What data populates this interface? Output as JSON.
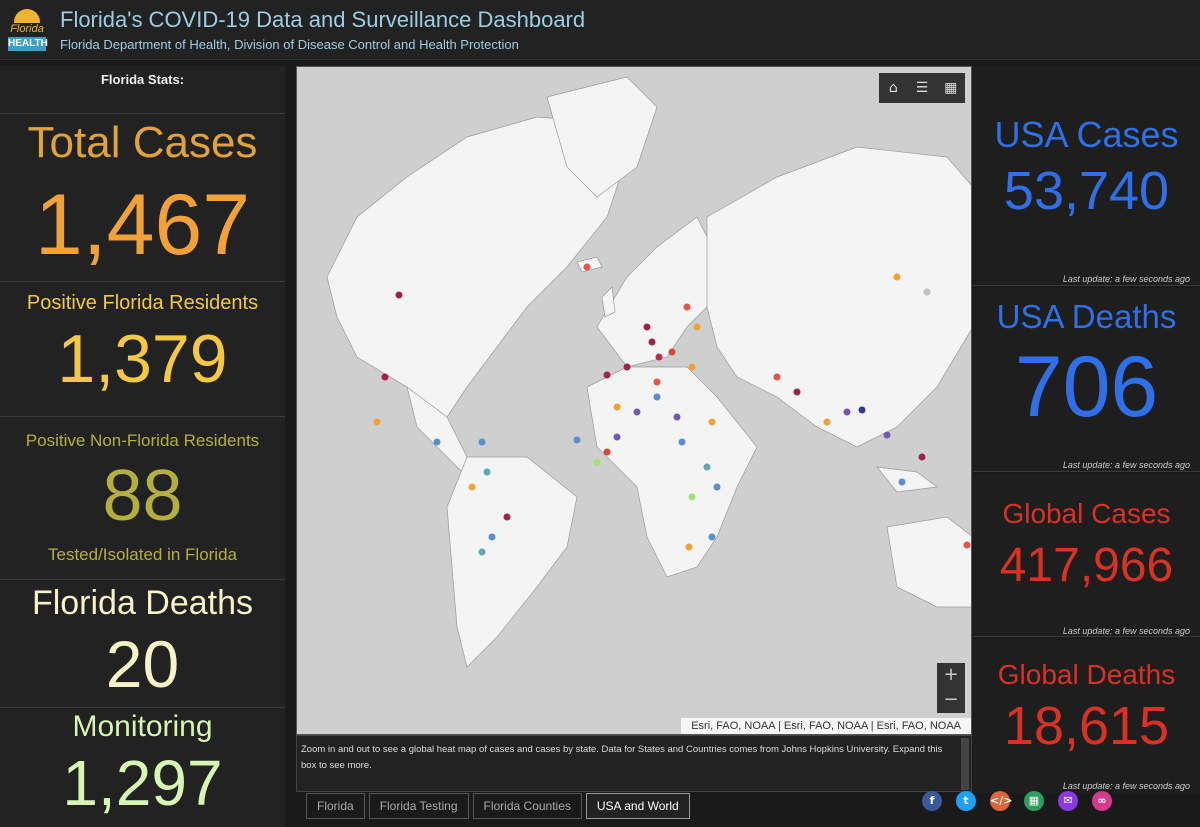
{
  "header": {
    "title": "Florida's COVID-19 Data and Surveillance Dashboard",
    "subtitle": "Florida Department of Health, Division of Disease Control and Health Protection",
    "logo_line1": "Florida",
    "logo_line2": "HEALTH"
  },
  "left": {
    "stats_label": "Florida Stats:",
    "total_cases_label": "Total Cases",
    "total_cases": "1,467",
    "positive_residents_label": "Positive Florida Residents",
    "positive_residents": "1,379",
    "non_residents_label": "Positive Non-Florida Residents",
    "non_residents": "88",
    "non_residents_sub": "Tested/Isolated in Florida",
    "deaths_label": "Florida Deaths",
    "deaths": "20",
    "monitoring_label": "Monitoring",
    "monitoring": "1,297"
  },
  "map": {
    "attribution": "Esri, FAO, NOAA | Esri, FAO, NOAA | Esri, FAO, NOAA",
    "zoom_in": "+",
    "zoom_out": "−",
    "description": "Zoom in and out to see a global heat map of cases and cases by state. Data for States and Countries comes from Johns Hopkins University. Expand this box to see more."
  },
  "tabs": [
    "Florida",
    "Florida Testing",
    "Florida Counties",
    "USA and World"
  ],
  "active_tab": "USA and World",
  "right": {
    "usa_cases_label": "USA Cases",
    "usa_cases": "53,740",
    "usa_deaths_label": "USA Deaths",
    "usa_deaths": "706",
    "global_cases_label": "Global Cases",
    "global_cases": "417,966",
    "global_deaths_label": "Global Deaths",
    "global_deaths": "18,615",
    "last_update": "Last update: a few seconds ago"
  },
  "colors": {
    "orange": "#f0a238",
    "yellow": "#f5c842",
    "olive": "#b5b03e",
    "cream": "#f7f2c7",
    "green": "#d6f7b4",
    "blue": "#2f6fe8",
    "red": "#d93224"
  },
  "social_icons": [
    "facebook-icon",
    "twitter-icon",
    "embed-icon",
    "qr-code-icon",
    "email-icon",
    "link-icon"
  ]
}
